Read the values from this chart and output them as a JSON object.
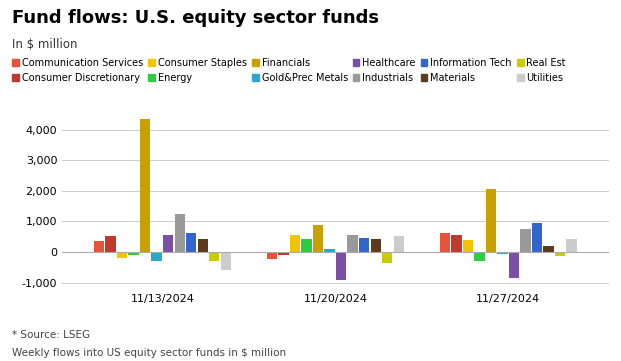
{
  "title": "Fund flows: U.S. equity sector funds",
  "subtitle": "In $ million",
  "footer1": "* Source: LSEG",
  "footer2": "Weekly flows into US equity sector funds in $ million",
  "dates": [
    "11/13/2024",
    "11/20/2024",
    "11/27/2024"
  ],
  "sectors": [
    "Communication Services",
    "Consumer Discretionary",
    "Consumer Staples",
    "Energy",
    "Financials",
    "Gold&Prec Metals",
    "Healthcare",
    "Industrials",
    "Information Tech",
    "Materials",
    "Real Est",
    "Utilities"
  ],
  "colors": [
    "#e8513a",
    "#c0392b",
    "#f0c400",
    "#2ecc40",
    "#c8a000",
    "#29a8cc",
    "#7b4fa6",
    "#999999",
    "#3366cc",
    "#5c3a1e",
    "#c8cc00",
    "#cccccc"
  ],
  "values": {
    "11/13/2024": [
      350,
      530,
      -200,
      -100,
      4350,
      -280,
      560,
      1230,
      620,
      420,
      -300,
      -580
    ],
    "11/20/2024": [
      -220,
      -100,
      560,
      430,
      900,
      100,
      -900,
      550,
      470,
      430,
      -350,
      530
    ],
    "11/27/2024": [
      620,
      560,
      380,
      -300,
      2050,
      -60,
      -850,
      740,
      960,
      200,
      -120,
      440
    ]
  },
  "ylim": [
    -1200,
    4700
  ],
  "yticks": [
    -1000,
    0,
    1000,
    2000,
    3000,
    4000
  ],
  "background_color": "#ffffff",
  "grid_color": "#cccccc"
}
